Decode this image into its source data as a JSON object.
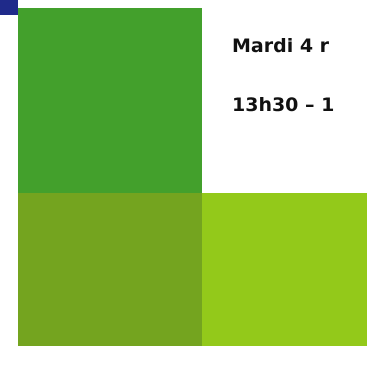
{
  "event": {
    "date_text": "Mardi 4 r",
    "time_text": "13h30 – 1"
  },
  "colors": {
    "corner_mark": "#1f2a8a",
    "tile_top": "#43a02c",
    "tile_bottom_left": "#74a41f",
    "tile_bottom_right": "#93c91a",
    "text": "#111111",
    "background": "#ffffff"
  }
}
